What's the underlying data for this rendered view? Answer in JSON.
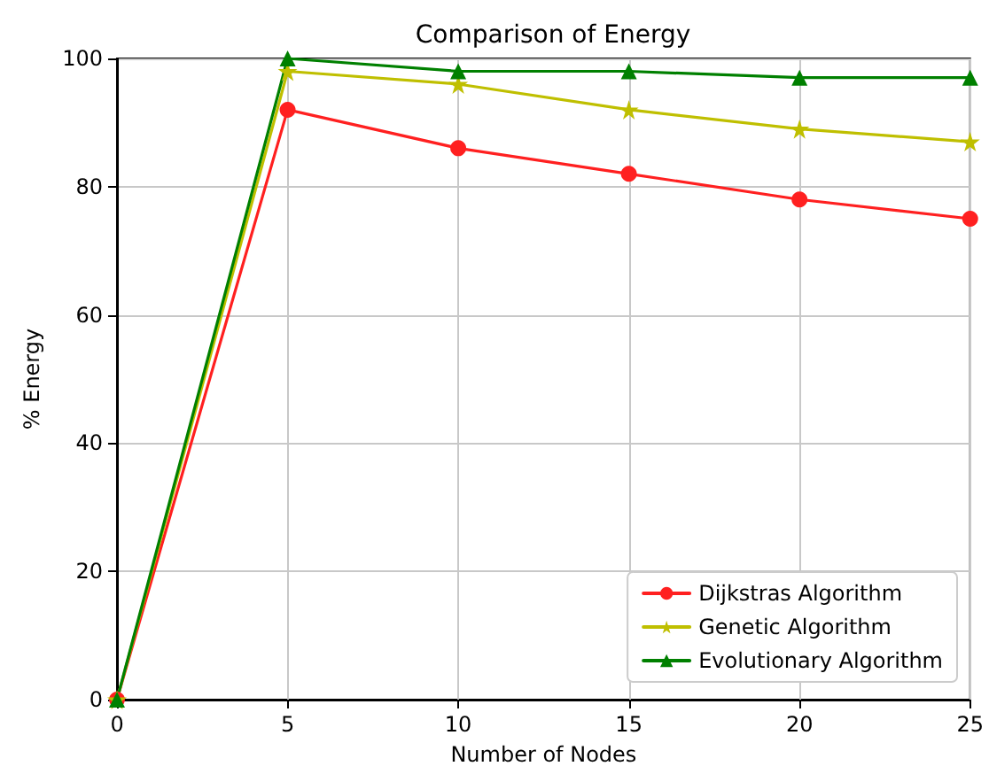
{
  "chart_data": {
    "type": "line",
    "title": "Comparison of Energy",
    "xlabel": "Number of Nodes",
    "ylabel": "% Energy",
    "x": [
      0,
      5,
      10,
      15,
      20,
      25
    ],
    "series": [
      {
        "name": "Dijkstras Algorithm",
        "color": "#ff2020",
        "marker": "circle",
        "values": [
          0,
          92,
          86,
          82,
          78,
          75
        ]
      },
      {
        "name": "Genetic Algorithm",
        "color": "#bfbf00",
        "marker": "star",
        "values": [
          0,
          98,
          96,
          92,
          89,
          87
        ]
      },
      {
        "name": "Evolutionary Algorithm",
        "color": "#008000",
        "marker": "triangle",
        "values": [
          0,
          100,
          98,
          98,
          97,
          97
        ]
      }
    ],
    "xlim": [
      0,
      25
    ],
    "xticks": [
      0,
      5,
      10,
      15,
      20,
      25
    ],
    "ylim": [
      0,
      100
    ],
    "yticks": [
      0,
      20,
      40,
      60,
      80,
      100
    ],
    "grid": true,
    "legend": "bottom right",
    "line_style": "solid"
  }
}
